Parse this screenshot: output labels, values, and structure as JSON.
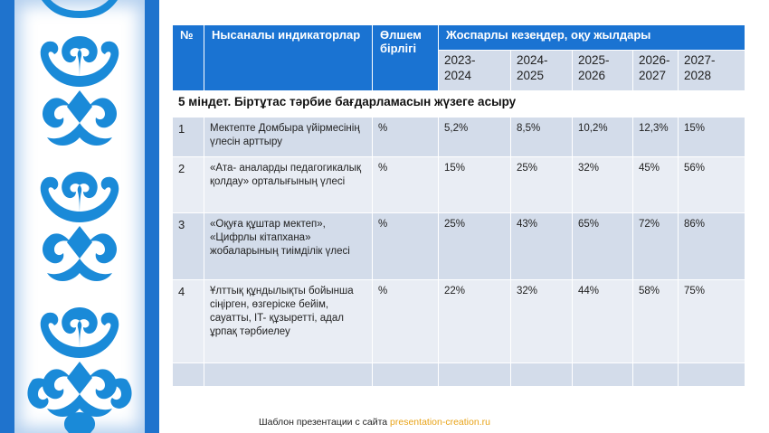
{
  "colors": {
    "brand_blue": "#1f73cd",
    "header_blue": "#1a73d2",
    "row_light": "#d3dcea",
    "row_lighter": "#e9edf4",
    "link": "#e8a317"
  },
  "ornament": {
    "icon": "kazakh-ornament-icon"
  },
  "table": {
    "headers": {
      "no": "№",
      "indicators": "Нысаналы индикаторлар",
      "unit": "Өлшем бірлігі",
      "periods": "Жоспарлы кезеңдер, оқу жылдары"
    },
    "years": [
      "2023-\n2024",
      "2024-\n2025",
      "2025-\n2026",
      "2026-\n2027",
      "2027-\n2028"
    ],
    "task": "5 міндет. Біртұтас тәрбие бағдарламасын жүзеге асыру",
    "rows": [
      {
        "no": "1",
        "indicator": "Мектепте Домбыра үйірмесінің үлесін арттыру",
        "unit": "%",
        "values": [
          "5,2%",
          "8,5%",
          "10,2%",
          "12,3%",
          "15%"
        ]
      },
      {
        "no": "2",
        "indicator": "«Ата- аналарды педагогикалық қолдау» орталығының үлесі",
        "unit": "%",
        "values": [
          "15%",
          "25%",
          "32%",
          "45%",
          "56%"
        ]
      },
      {
        "no": "3",
        "indicator": "«Оқуға құштар мектеп», «Цифрлы кітапхана» жобаларының тиімділік үлесі",
        "unit": "%",
        "values": [
          "25%",
          "43%",
          "65%",
          "72%",
          "86%"
        ]
      },
      {
        "no": "4",
        "indicator": "Ұлттық құндылықты бойынша сіңірген, өзгеріске бейім, сауатты, IT- құзыретті, адал ұрпақ тәрбиелеу",
        "unit": "%",
        "values": [
          "22%",
          "32%",
          "44%",
          "58%",
          "75%"
        ]
      }
    ]
  },
  "footer": {
    "text": "Шаблон презентации с сайта",
    "link": "presentation-creation.ru"
  }
}
